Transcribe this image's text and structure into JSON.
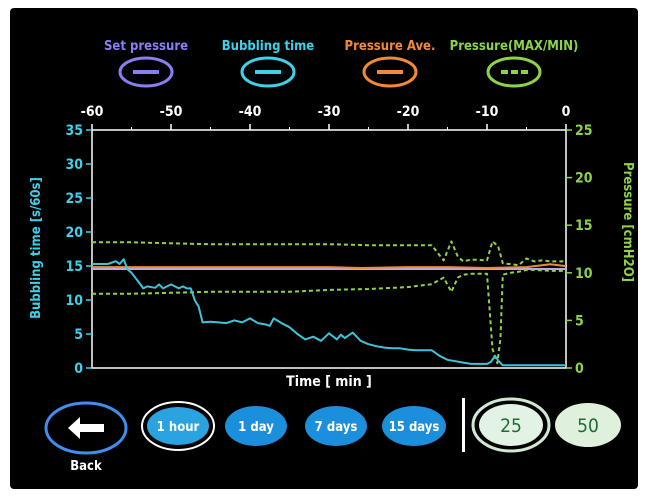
{
  "legend": [
    {
      "label": "Set pressure",
      "color": "#8a7ff0",
      "indicator": "solid-dash"
    },
    {
      "label": "Bubbling time",
      "color": "#3fd0ea",
      "indicator": "solid-dash"
    },
    {
      "label": "Pressure Ave.",
      "color": "#f08a3a",
      "indicator": "solid-dash"
    },
    {
      "label": "Pressure(MAX/MIN)",
      "color": "#8ed24a",
      "indicator": "dotted-dash"
    }
  ],
  "range_buttons": [
    {
      "label": "1 hour",
      "selected": true
    },
    {
      "label": "1 day",
      "selected": false
    },
    {
      "label": "7 days",
      "selected": false
    },
    {
      "label": "15 days",
      "selected": false
    }
  ],
  "scale_buttons": [
    {
      "label": "25",
      "selected": true
    },
    {
      "label": "50",
      "selected": false
    }
  ],
  "back": {
    "label": "Back",
    "icon": "arrow-left-icon"
  },
  "chart_data": {
    "type": "line",
    "xlabel": "Time [ min ]",
    "ylabel_left": "Bubbling time  [s/60s]",
    "ylabel_right": "Pressure  [cmH2O]",
    "xlim": [
      -60,
      0
    ],
    "ylim_left": [
      0,
      35
    ],
    "ylim_right": [
      0,
      25
    ],
    "x_ticks": [
      "-60",
      "-50",
      "-40",
      "-30",
      "-20",
      "-10",
      "0"
    ],
    "y_left_ticks": [
      "0",
      "5",
      "10",
      "15",
      "20",
      "25",
      "30",
      "35"
    ],
    "y_right_ticks": [
      "0",
      "5",
      "10",
      "15",
      "20",
      "25"
    ],
    "grid": false,
    "series": [
      {
        "name": "Set pressure",
        "axis": "right",
        "color": "#b6a9f2",
        "x": [
          -60,
          0
        ],
        "y": [
          10.4,
          10.4
        ]
      },
      {
        "name": "Pressure Ave.",
        "axis": "right",
        "color": "#f08a3a",
        "x": [
          -60,
          -50,
          -40,
          -35,
          -30,
          -26,
          -20,
          -15,
          -10,
          -5,
          -2,
          0
        ],
        "y": [
          10.6,
          10.6,
          10.6,
          10.6,
          10.6,
          10.5,
          10.6,
          10.6,
          10.5,
          10.6,
          10.9,
          10.7
        ]
      },
      {
        "name": "Pressure(MAX/MIN)",
        "axis": "right",
        "color": "#8ed24a",
        "dashed": true,
        "x": [
          -60,
          -55,
          -50,
          -45,
          -40,
          -35,
          -30,
          -25,
          -20,
          -17,
          -15.5,
          -14.5,
          -13.7,
          -13,
          -12,
          -10,
          -9.3,
          -8.6,
          -8,
          -7,
          -6,
          -5,
          -4,
          -3,
          -2,
          0
        ],
        "y": [
          13.2,
          13.2,
          13.1,
          13.0,
          13.0,
          13.0,
          13.0,
          12.9,
          12.9,
          12.9,
          11.3,
          13.3,
          11.7,
          11.2,
          11.4,
          11.3,
          13.3,
          12.8,
          11.0,
          10.9,
          10.8,
          11.5,
          11.2,
          11.3,
          11.2,
          11.2
        ]
      },
      {
        "name": "Pressure(MAX/MIN) min",
        "axis": "right",
        "color": "#8ed24a",
        "dashed": true,
        "x": [
          -60,
          -55,
          -50,
          -45,
          -40,
          -35,
          -30,
          -25,
          -20,
          -17,
          -15.5,
          -14.5,
          -13.7,
          -13,
          -12,
          -10,
          -9.3,
          -8.7,
          -8.3,
          -8,
          -7,
          -6,
          -5,
          -4,
          -2,
          0
        ],
        "y": [
          7.8,
          7.8,
          7.9,
          8.0,
          8.0,
          8.0,
          8.2,
          8.3,
          8.5,
          8.8,
          9.5,
          8.0,
          9.5,
          9.8,
          9.9,
          9.9,
          2.0,
          0.5,
          3.0,
          9.8,
          10.0,
          10.1,
          10.3,
          10.3,
          10.2,
          10.2
        ]
      },
      {
        "name": "Bubbling time",
        "axis": "left",
        "color": "#3fc3d8",
        "x": [
          -60,
          -58,
          -57,
          -56.5,
          -56,
          -55.5,
          -55,
          -54,
          -53.5,
          -53,
          -52,
          -51.5,
          -51,
          -50,
          -49,
          -48.5,
          -48,
          -47.5,
          -47,
          -46.5,
          -46,
          -45,
          -44,
          -43,
          -42,
          -41,
          -40,
          -39,
          -38,
          -37.5,
          -37,
          -36,
          -35,
          -34,
          -33,
          -32,
          -31,
          -30,
          -29,
          -28.5,
          -28,
          -27,
          -26,
          -25,
          -24,
          -23,
          -22,
          -21,
          -20,
          -19,
          -18,
          -17,
          -16,
          -15,
          -14,
          -13,
          -12,
          -11,
          -10,
          -9.5,
          -9,
          -8.5,
          -8,
          -7,
          -5,
          -2,
          0
        ],
        "y": [
          15.3,
          15.3,
          15.7,
          15.3,
          16.0,
          14.5,
          14.0,
          12.5,
          11.7,
          12.0,
          11.8,
          12.3,
          11.7,
          12.3,
          11.7,
          12.0,
          11.7,
          11.7,
          10.0,
          9.0,
          6.7,
          6.8,
          6.7,
          6.6,
          7.0,
          6.7,
          7.3,
          6.6,
          6.4,
          6.2,
          7.3,
          6.6,
          6.0,
          5.0,
          4.2,
          4.6,
          4.0,
          5.1,
          4.2,
          4.9,
          4.4,
          5.2,
          4.0,
          3.5,
          3.2,
          3.0,
          2.9,
          2.9,
          2.7,
          2.6,
          2.6,
          2.6,
          1.8,
          1.2,
          1.0,
          0.8,
          0.6,
          0.6,
          0.6,
          0.9,
          1.8,
          1.0,
          0.4,
          0.4,
          0.4,
          0.4,
          0.4
        ]
      }
    ]
  }
}
